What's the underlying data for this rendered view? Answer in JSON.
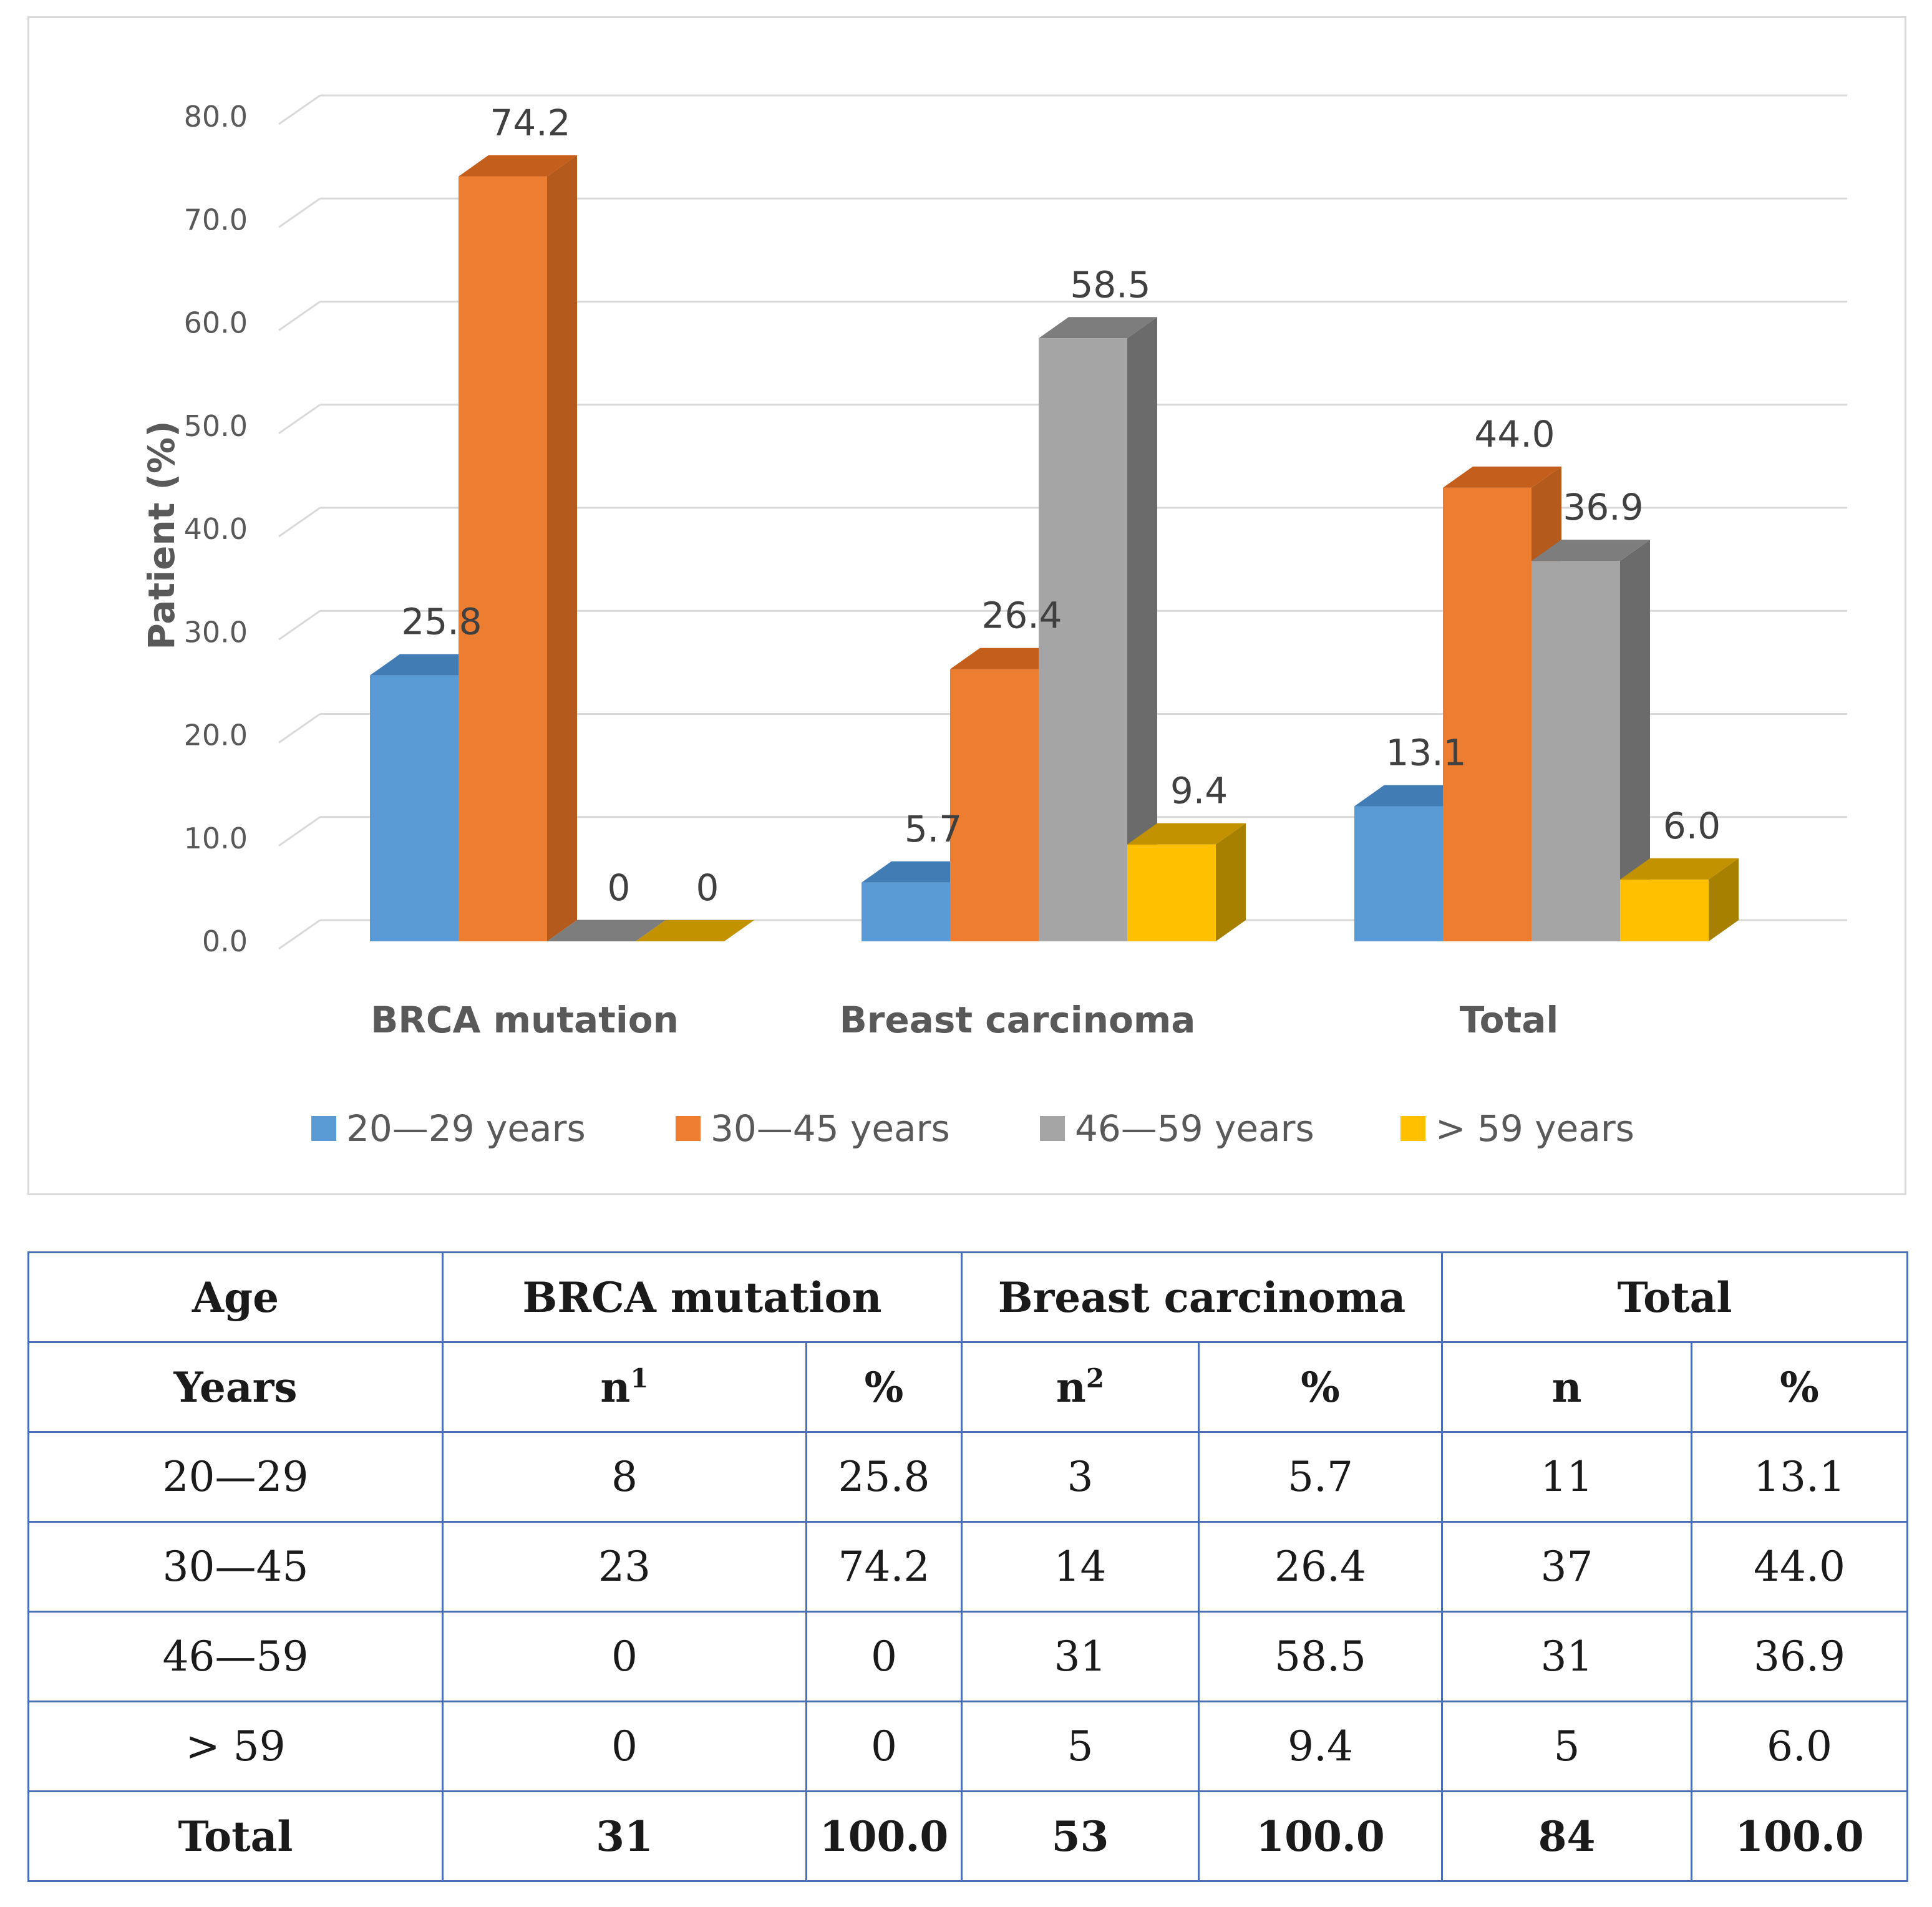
{
  "chart_data": {
    "type": "bar",
    "categories": [
      "BRCA mutation",
      "Breast carcinoma",
      "Total"
    ],
    "series": [
      {
        "name": "20—29 years",
        "values": [
          25.8,
          5.7,
          13.1
        ],
        "labels": [
          "25.8",
          "5.7",
          "13.1"
        ]
      },
      {
        "name": "30—45 years",
        "values": [
          74.2,
          26.4,
          44.0
        ],
        "labels": [
          "74.2",
          "26.4",
          "44.0"
        ]
      },
      {
        "name": "46—59 years",
        "values": [
          0,
          58.5,
          36.9
        ],
        "labels": [
          "0",
          "58.5",
          "36.9"
        ]
      },
      {
        "name": "> 59 years",
        "values": [
          0,
          9.4,
          6.0
        ],
        "labels": [
          "0",
          "9.4",
          "6.0"
        ]
      }
    ],
    "ylabel": "Patient (%)",
    "xlabel": "",
    "ylim": [
      0,
      80
    ],
    "yticks": [
      "0.0",
      "10.0",
      "20.0",
      "30.0",
      "40.0",
      "50.0",
      "60.0",
      "70.0",
      "80.0"
    ],
    "grid": true,
    "legend": "bottom",
    "style": "3d-clustered-column"
  },
  "colors": {
    "series_front": [
      "#5b9bd5",
      "#ed7d31",
      "#a5a5a5",
      "#ffc000"
    ],
    "series_side": [
      "#3f74a8",
      "#b55a1d",
      "#6b6b6b",
      "#a88000"
    ],
    "series_top": [
      "#417cb4",
      "#c45e1c",
      "#7d7d7d",
      "#c29200"
    ],
    "grid": "#d9d9d9",
    "table_border": "#4a6fb4"
  },
  "table": {
    "header_row1": {
      "age": "Age",
      "brca": "BRCA mutation",
      "breast": "Breast carcinoma",
      "total": "Total"
    },
    "header_row2": {
      "years": "Years",
      "n1": "n",
      "n1_sup": "1",
      "pct1": "%",
      "n2": "n",
      "n2_sup": "2",
      "pct2": "%",
      "n3": "n",
      "pct3": "%"
    },
    "rows": [
      [
        "20—29",
        "8",
        "25.8",
        "3",
        "5.7",
        "11",
        "13.1"
      ],
      [
        "30—45",
        "23",
        "74.2",
        "14",
        "26.4",
        "37",
        "44.0"
      ],
      [
        "46—59",
        "0",
        "0",
        "31",
        "58.5",
        "31",
        "36.9"
      ],
      [
        "> 59",
        "0",
        "0",
        "5",
        "9.4",
        "5",
        "6.0"
      ]
    ],
    "total_row": [
      "Total",
      "31",
      "100.0",
      "53",
      "100.0",
      "84",
      "100.0"
    ]
  }
}
